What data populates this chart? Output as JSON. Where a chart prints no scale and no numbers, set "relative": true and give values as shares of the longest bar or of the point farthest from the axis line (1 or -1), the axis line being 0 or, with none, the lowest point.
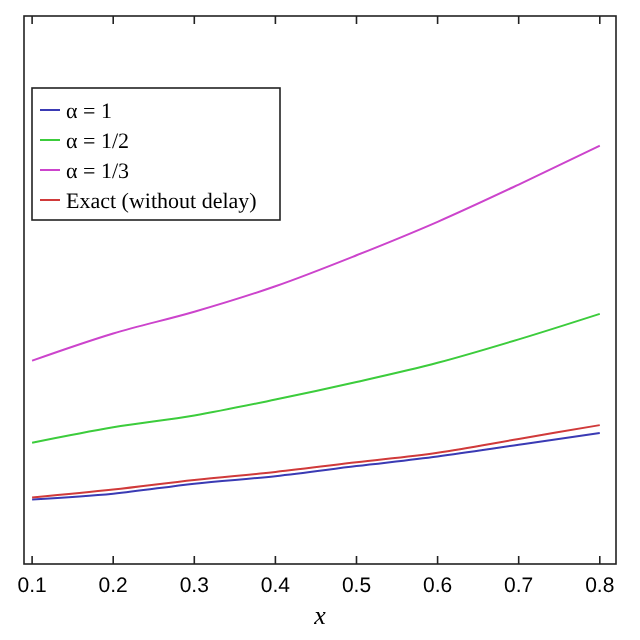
{
  "chart_data": {
    "type": "line",
    "xlabel": "x",
    "relative": true,
    "x": [
      0.1,
      0.2,
      0.3,
      0.4,
      0.5,
      0.6,
      0.7,
      0.8
    ],
    "xlim": [
      0.09,
      0.82
    ],
    "xticks": [
      0.1,
      0.2,
      0.3,
      0.4,
      0.5,
      0.6,
      0.7,
      0.8
    ],
    "grid": false,
    "legend": "top left",
    "marker": "none",
    "line_style": "solid",
    "series": [
      {
        "name": "α = 1",
        "color": "#3a3ab4",
        "values": [
          0.154,
          0.168,
          0.192,
          0.21,
          0.234,
          0.257,
          0.285,
          0.313
        ]
      },
      {
        "name": "α = 1/2",
        "color": "#3ccc3c",
        "values": [
          0.29,
          0.327,
          0.355,
          0.393,
          0.435,
          0.481,
          0.537,
          0.598
        ]
      },
      {
        "name": "α = 1/3",
        "color": "#cc44cc",
        "values": [
          0.486,
          0.551,
          0.603,
          0.664,
          0.738,
          0.818,
          0.907,
          1
        ]
      },
      {
        "name": "Exact (without delay)",
        "color": "#d03a3a",
        "values": [
          0.159,
          0.178,
          0.201,
          0.22,
          0.243,
          0.266,
          0.299,
          0.332
        ]
      }
    ]
  }
}
